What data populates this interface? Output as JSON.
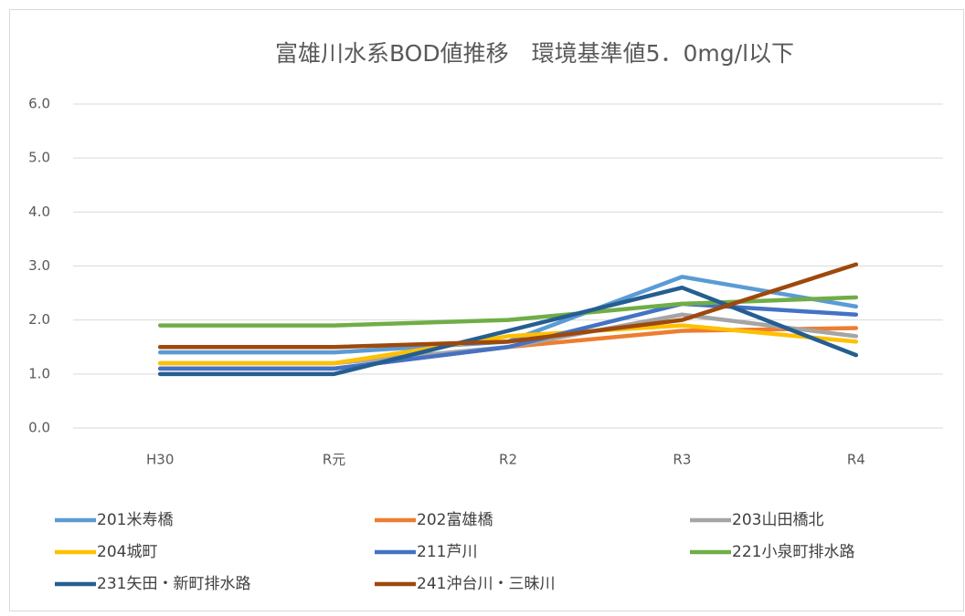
{
  "chart_data": {
    "type": "line",
    "title": "富雄川水系BOD値推移　環境基準値5．0mg/l以下",
    "categories": [
      "H30",
      "R元",
      "R2",
      "R3",
      "R4"
    ],
    "series": [
      {
        "name": "201米寿橋",
        "color": "#5b9bd5",
        "values": [
          1.4,
          1.4,
          1.6,
          2.8,
          2.25
        ]
      },
      {
        "name": "202富雄橋",
        "color": "#ed7d31",
        "values": [
          1.1,
          1.1,
          1.5,
          1.8,
          1.85
        ]
      },
      {
        "name": "203山田橋北",
        "color": "#a5a5a5",
        "values": [
          1.2,
          1.2,
          1.5,
          2.1,
          1.7
        ]
      },
      {
        "name": "204城町",
        "color": "#ffc000",
        "values": [
          1.2,
          1.2,
          1.7,
          1.9,
          1.6
        ]
      },
      {
        "name": "211芦川",
        "color": "#4472c4",
        "values": [
          1.1,
          1.1,
          1.5,
          2.3,
          2.1
        ]
      },
      {
        "name": "221小泉町排水路",
        "color": "#70ad47",
        "values": [
          1.9,
          1.9,
          2.0,
          2.3,
          2.42
        ]
      },
      {
        "name": "231矢田・新町排水路",
        "color": "#255e91",
        "values": [
          1.0,
          1.0,
          1.8,
          2.6,
          1.35
        ]
      },
      {
        "name": "241沖台川・三昧川",
        "color": "#9e480e",
        "values": [
          1.5,
          1.5,
          1.6,
          2.0,
          3.03
        ]
      }
    ],
    "ylim": [
      0,
      6
    ],
    "yticks": [
      {
        "value": 0,
        "label": "0.0"
      },
      {
        "value": 1,
        "label": "1.0"
      },
      {
        "value": 2,
        "label": "2.0"
      },
      {
        "value": 3,
        "label": "3.0"
      },
      {
        "value": 4,
        "label": "4.0"
      },
      {
        "value": 5,
        "label": "5.0"
      },
      {
        "value": 6,
        "label": "6.0"
      }
    ],
    "grid": true
  }
}
